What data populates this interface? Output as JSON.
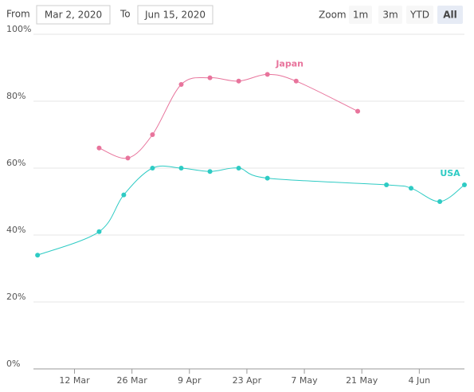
{
  "range_selector": {
    "from_label": "From",
    "from_value": "Mar 2, 2020",
    "to_label": "To",
    "to_value": "Jun 15, 2020",
    "zoom_label": "Zoom",
    "buttons": [
      "1m",
      "3m",
      "YTD",
      "All"
    ],
    "selected": "All"
  },
  "chart_data": {
    "type": "line",
    "xlim": [
      "2020-03-02",
      "2020-06-15"
    ],
    "xticks": [
      {
        "value": "2020-03-12",
        "label": "12 Mar"
      },
      {
        "value": "2020-03-26",
        "label": "26 Mar"
      },
      {
        "value": "2020-04-09",
        "label": "9 Apr"
      },
      {
        "value": "2020-04-23",
        "label": "23 Apr"
      },
      {
        "value": "2020-05-07",
        "label": "7 May"
      },
      {
        "value": "2020-05-21",
        "label": "21 May"
      },
      {
        "value": "2020-06-04",
        "label": "4 Jun"
      }
    ],
    "ylim": [
      0,
      100
    ],
    "yticks": [
      {
        "value": 0,
        "label": "0%"
      },
      {
        "value": 20,
        "label": "20%"
      },
      {
        "value": 40,
        "label": "40%"
      },
      {
        "value": 60,
        "label": "60%"
      },
      {
        "value": 80,
        "label": "80%"
      },
      {
        "value": 100,
        "label": "100%"
      }
    ],
    "grid": true,
    "series": [
      {
        "name": "Japan",
        "color": "#e8749c",
        "x": [
          "2020-03-18",
          "2020-03-25",
          "2020-03-31",
          "2020-04-07",
          "2020-04-14",
          "2020-04-21",
          "2020-04-28",
          "2020-05-05",
          "2020-05-20"
        ],
        "values": [
          66,
          63,
          70,
          85,
          87,
          86,
          88,
          86,
          77
        ]
      },
      {
        "name": "USA",
        "color": "#2ecbc4",
        "x": [
          "2020-03-03",
          "2020-03-18",
          "2020-03-24",
          "2020-03-31",
          "2020-04-07",
          "2020-04-14",
          "2020-04-21",
          "2020-04-28",
          "2020-05-27",
          "2020-06-02",
          "2020-06-09",
          "2020-06-15"
        ],
        "values": [
          34,
          41,
          52,
          60,
          60,
          59,
          60,
          57,
          55,
          54,
          50,
          55
        ]
      }
    ]
  }
}
